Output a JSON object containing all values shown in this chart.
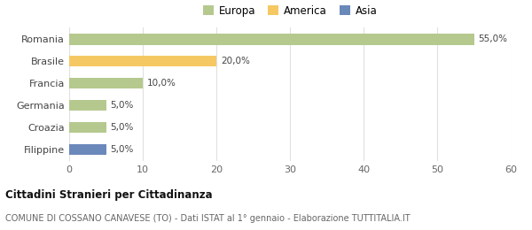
{
  "categories": [
    "Romania",
    "Brasile",
    "Francia",
    "Germania",
    "Croazia",
    "Filippine"
  ],
  "values": [
    55.0,
    20.0,
    10.0,
    5.0,
    5.0,
    5.0
  ],
  "bar_colors": [
    "#b5c98e",
    "#f5c864",
    "#b5c98e",
    "#b5c98e",
    "#b5c98e",
    "#6b88bb"
  ],
  "xlim": [
    0,
    60
  ],
  "xticks": [
    0,
    10,
    20,
    30,
    40,
    50,
    60
  ],
  "legend_items": [
    {
      "label": "Europa",
      "color": "#b5c98e"
    },
    {
      "label": "America",
      "color": "#f5c864"
    },
    {
      "label": "Asia",
      "color": "#6b88bb"
    }
  ],
  "bar_labels": [
    "55,0%",
    "20,0%",
    "10,0%",
    "5,0%",
    "5,0%",
    "5,0%"
  ],
  "title_bold": "Cittadini Stranieri per Cittadinanza",
  "subtitle": "COMUNE DI COSSANO CANAVESE (TO) - Dati ISTAT al 1° gennaio - Elaborazione TUTTITALIA.IT",
  "background_color": "#ffffff",
  "grid_color": "#e0e0e0"
}
